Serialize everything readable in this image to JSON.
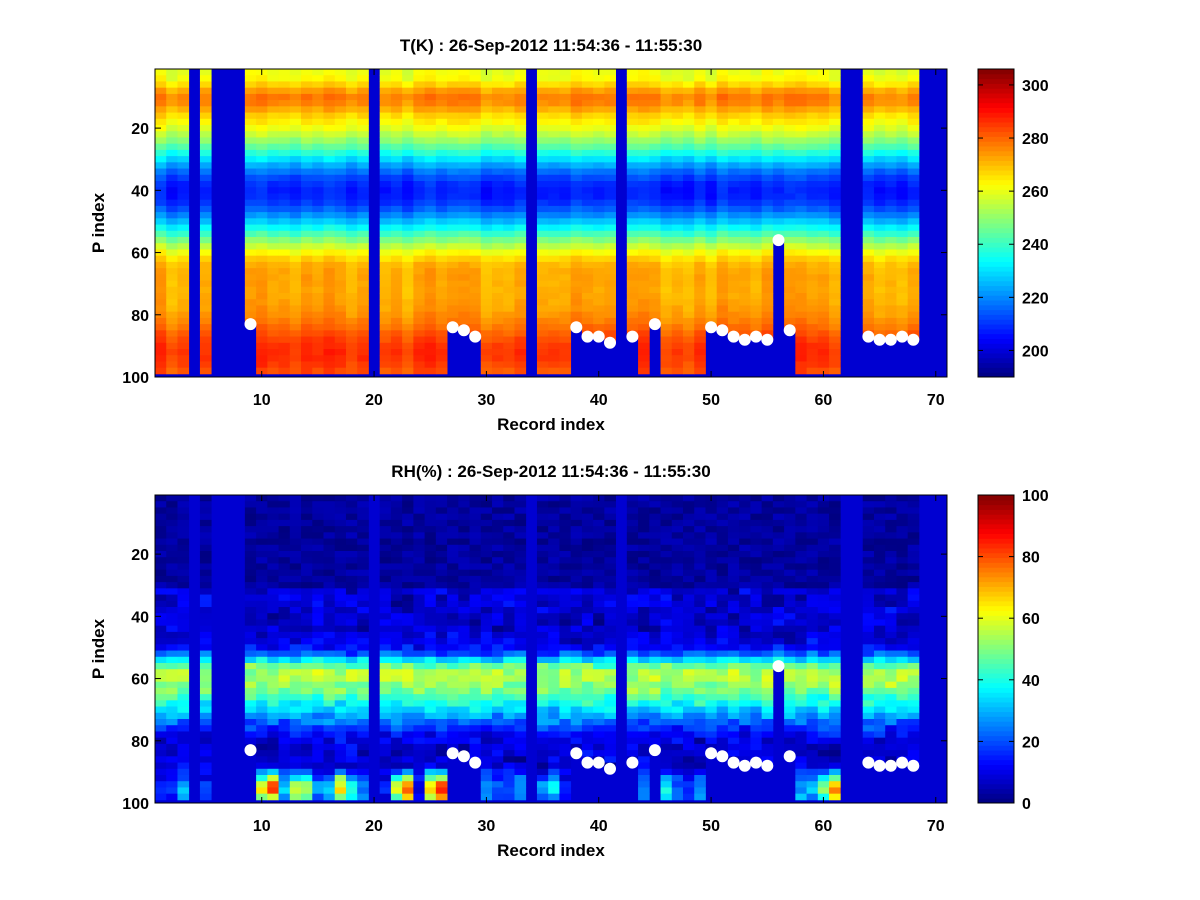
{
  "chart_data": [
    {
      "type": "heatmap",
      "title": "T(K) : 26-Sep-2012 11:54:36 - 11:55:30",
      "xlabel": "Record index",
      "ylabel": "P index",
      "xlim": [
        0.5,
        71
      ],
      "ylim": [
        1,
        100
      ],
      "x_ticks": [
        "10",
        "20",
        "30",
        "40",
        "50",
        "60",
        "70"
      ],
      "y_ticks": [
        "20",
        "40",
        "60",
        "80",
        "100"
      ],
      "colorbar": {
        "range": [
          190,
          306
        ],
        "ticks": [
          "200",
          "220",
          "240",
          "260",
          "280",
          "300"
        ]
      },
      "masked_columns": [
        4,
        6,
        7,
        8,
        20,
        34,
        42,
        62,
        63,
        69,
        70
      ],
      "surface_levels": [
        [
          9,
          83
        ],
        [
          27,
          84
        ],
        [
          28,
          85
        ],
        [
          29,
          87
        ],
        [
          38,
          84
        ],
        [
          39,
          87
        ],
        [
          40,
          87
        ],
        [
          41,
          89
        ],
        [
          43,
          87
        ],
        [
          45,
          83
        ],
        [
          50,
          84
        ],
        [
          51,
          85
        ],
        [
          52,
          87
        ],
        [
          53,
          88
        ],
        [
          54,
          87
        ],
        [
          55,
          88
        ],
        [
          56,
          56
        ],
        [
          57,
          85
        ],
        [
          64,
          87
        ],
        [
          65,
          88
        ],
        [
          66,
          88
        ],
        [
          67,
          87
        ],
        [
          68,
          88
        ]
      ],
      "profile_description": "Warm band near P 5-15 (~265-285 K), minimum near P 35-45 (~205 K), rising to ~260 K at P 60-65 and ~280-290 K near P 85-98"
    },
    {
      "type": "heatmap",
      "title": "RH(%) : 26-Sep-2012 11:54:36 - 11:55:30",
      "xlabel": "Record index",
      "ylabel": "P index",
      "xlim": [
        0.5,
        71
      ],
      "ylim": [
        1,
        100
      ],
      "x_ticks": [
        "10",
        "20",
        "30",
        "40",
        "50",
        "60",
        "70"
      ],
      "y_ticks": [
        "20",
        "40",
        "60",
        "80",
        "100"
      ],
      "colorbar": {
        "range": [
          0,
          100
        ],
        "ticks": [
          "0",
          "20",
          "40",
          "60",
          "80",
          "100"
        ]
      },
      "masked_columns": [
        4,
        6,
        7,
        8,
        20,
        34,
        42,
        62,
        63,
        69,
        70
      ],
      "surface_levels": [
        [
          9,
          83
        ],
        [
          27,
          84
        ],
        [
          28,
          85
        ],
        [
          29,
          87
        ],
        [
          38,
          84
        ],
        [
          39,
          87
        ],
        [
          40,
          87
        ],
        [
          41,
          89
        ],
        [
          43,
          87
        ],
        [
          45,
          83
        ],
        [
          50,
          84
        ],
        [
          51,
          85
        ],
        [
          52,
          87
        ],
        [
          53,
          88
        ],
        [
          54,
          87
        ],
        [
          55,
          88
        ],
        [
          56,
          56
        ],
        [
          57,
          85
        ],
        [
          64,
          87
        ],
        [
          65,
          88
        ],
        [
          66,
          88
        ],
        [
          67,
          87
        ],
        [
          68,
          88
        ]
      ],
      "profile_description": "Dry (~0-10%) above P 35, humid layer 40-60% near P 55-68, moist patches 60-95% near P 90-98"
    }
  ]
}
